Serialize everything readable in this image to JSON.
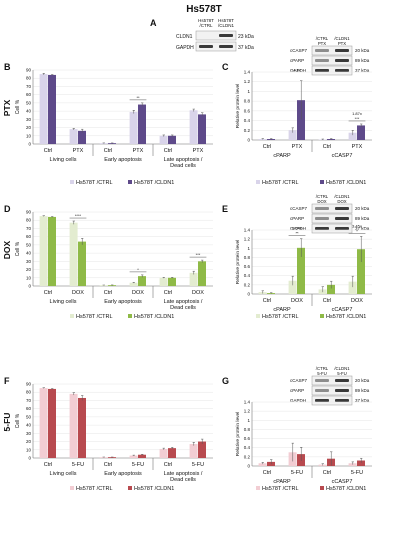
{
  "figure": {
    "title": "Hs578T",
    "blot_top": {
      "panel_label": "A",
      "lanes": [
        "Hs578T\n/CTRL",
        "Hs578T\n/CLDN1"
      ],
      "rows": [
        "CLDN1",
        "GAPDH"
      ],
      "sizes": [
        "23 kDa",
        "37 kDa"
      ]
    }
  },
  "colors": {
    "ctrl_ptx": "#d9d4ea",
    "cldn1_ptx": "#5e4a8a",
    "ctrl_dox": "#e3ecd0",
    "cldn1_dox": "#8fba47",
    "ctrl_5fu": "#f2cdd3",
    "cldn1_5fu": "#b84a4f"
  },
  "rows": [
    {
      "row_label": "PTX",
      "left_panel": "B",
      "right_panel": "C",
      "legend": [
        "Hs578T /CTRL",
        "Hs578T /CLDN1"
      ],
      "right_blot": {
        "lanes": [
          "/CTRL\nPTX",
          "/CLDN1\nPTX"
        ],
        "rows": [
          "cCASP7",
          "cPARP",
          "GAPDH"
        ],
        "sizes": [
          "20 kDa",
          "89 kDa",
          "37 kDa"
        ]
      },
      "right_annotations": [
        "4.1x",
        "1.87x"
      ]
    },
    {
      "row_label": "DOX",
      "left_panel": "D",
      "right_panel": "E",
      "legend": [
        "Hs578T /CTRL",
        "Hs578T /CLDN1"
      ],
      "right_blot": {
        "lanes": [
          "/CTRL\nDOX",
          "/CLDN1\nDOX"
        ],
        "rows": [
          "cCASP7",
          "cPARP",
          "GAPDH"
        ],
        "sizes": [
          "20 kDa",
          "89 kDa",
          "37 kDa"
        ]
      },
      "right_annotations": [
        "3.54x",
        "3.45x"
      ]
    },
    {
      "row_label": "5-FU",
      "left_panel": "F",
      "right_panel": "G",
      "legend": [
        "Hs578T /CTRL",
        "Hs578T /CLDN1"
      ],
      "right_blot": {
        "lanes": [
          "/CTRL\n5-FU",
          "/CLDN1\n5-FU"
        ],
        "rows": [
          "cCASP7",
          "cPARP",
          "GAPDH"
        ],
        "sizes": [
          "20 kDa",
          "89 kDa",
          "37 kDa"
        ]
      },
      "right_annotations": []
    }
  ],
  "chart_data": [
    {
      "id": "B",
      "type": "bar",
      "ylabel": "Cell %",
      "ylim": [
        0,
        90
      ],
      "yticks": [
        0,
        10,
        20,
        30,
        40,
        50,
        60,
        70,
        80,
        90
      ],
      "categories": [
        "Ctrl",
        "PTX",
        "Ctrl",
        "PTX",
        "Ctrl",
        "PTX"
      ],
      "groups": [
        "Living cells",
        "Early apoptosis",
        "Late apoptosis  /\nDead cells"
      ],
      "series": [
        {
          "name": "Hs578T /CTRL",
          "values": [
            85,
            18,
            1,
            39,
            10,
            41
          ],
          "errors": [
            1,
            1,
            0.3,
            2,
            1,
            1.5
          ]
        },
        {
          "name": "Hs578T /CLDN1",
          "values": [
            84,
            16,
            1,
            48,
            10,
            36
          ],
          "errors": [
            0.5,
            2,
            0.3,
            2,
            1,
            2
          ]
        }
      ],
      "significance": [
        "",
        "",
        "",
        "**",
        "",
        ""
      ]
    },
    {
      "id": "C",
      "type": "bar",
      "ylabel": "Relative protein level",
      "ylim": [
        0,
        1.4
      ],
      "yticks": [
        0,
        0.2,
        0.4,
        0.6,
        0.8,
        1,
        1.2,
        1.4
      ],
      "categories": [
        "Ctrl",
        "PTX",
        "Ctrl",
        "PTX"
      ],
      "groups": [
        "cPARP",
        "cCASP7"
      ],
      "series": [
        {
          "name": "Hs578T /CTRL",
          "values": [
            0.02,
            0.2,
            0.01,
            0.15
          ],
          "errors": [
            0.01,
            0.05,
            0.01,
            0.05
          ]
        },
        {
          "name": "Hs578T /CLDN1",
          "values": [
            0.02,
            0.82,
            0.02,
            0.3
          ],
          "errors": [
            0.01,
            0.4,
            0.01,
            0.03
          ]
        }
      ],
      "significance": [
        "",
        "",
        "",
        "***"
      ]
    },
    {
      "id": "D",
      "type": "bar",
      "ylabel": "Cell %",
      "ylim": [
        0,
        90
      ],
      "yticks": [
        0,
        10,
        20,
        30,
        40,
        50,
        60,
        70,
        80,
        90
      ],
      "categories": [
        "Ctrl",
        "DOX",
        "Ctrl",
        "DOX",
        "Ctrl",
        "DOX"
      ],
      "groups": [
        "Living cells",
        "Early apoptosis",
        "Late apoptosis  /\nDead cells"
      ],
      "series": [
        {
          "name": "Hs578T /CTRL",
          "values": [
            85,
            77,
            1,
            4,
            10,
            16
          ],
          "errors": [
            0.5,
            2,
            0.2,
            0.5,
            0.5,
            2
          ]
        },
        {
          "name": "Hs578T /CLDN1",
          "values": [
            84,
            54,
            1,
            12,
            10,
            30
          ],
          "errors": [
            0.5,
            4,
            0.3,
            1.5,
            0.5,
            1.5
          ]
        }
      ],
      "significance": [
        "",
        "****",
        "",
        "*",
        "",
        "***"
      ]
    },
    {
      "id": "E",
      "type": "bar",
      "ylabel": "Relative protein level",
      "ylim": [
        0,
        1.4
      ],
      "yticks": [
        0,
        0.2,
        0.4,
        0.6,
        0.8,
        1,
        1.2,
        1.4
      ],
      "categories": [
        "Ctrl",
        "DOX",
        "Ctrl",
        "DOX"
      ],
      "groups": [
        "cPARP",
        "cCASP7"
      ],
      "series": [
        {
          "name": "Hs578T /CTRL",
          "values": [
            0.04,
            0.29,
            0.1,
            0.27
          ],
          "errors": [
            0.03,
            0.1,
            0.06,
            0.12
          ]
        },
        {
          "name": "Hs578T /CLDN1",
          "values": [
            0.02,
            1.01,
            0.2,
            0.98
          ],
          "errors": [
            0.01,
            0.2,
            0.08,
            0.28
          ]
        }
      ],
      "significance": [
        "",
        "**",
        "",
        "*"
      ]
    },
    {
      "id": "F",
      "type": "bar",
      "ylabel": "Cell %",
      "ylim": [
        0,
        90
      ],
      "yticks": [
        0,
        10,
        20,
        30,
        40,
        50,
        60,
        70,
        80,
        90
      ],
      "categories": [
        "Ctrl",
        "5-FU",
        "Ctrl",
        "5-FU",
        "Ctrl",
        "5-FU"
      ],
      "groups": [
        "Living cells",
        "Early apoptosis",
        "Late apoptosis  /\nDead cells"
      ],
      "series": [
        {
          "name": "Hs578T /CTRL",
          "values": [
            85,
            78,
            1,
            3,
            11,
            17
          ],
          "errors": [
            0.5,
            1.5,
            0.2,
            0.5,
            1,
            2
          ]
        },
        {
          "name": "Hs578T /CLDN1",
          "values": [
            84,
            73,
            1,
            4,
            12,
            20
          ],
          "errors": [
            0.5,
            3,
            0.2,
            0.5,
            1,
            3
          ]
        }
      ],
      "significance": [
        "",
        "",
        "",
        "",
        "",
        ""
      ]
    },
    {
      "id": "G",
      "type": "bar",
      "ylabel": "Relative protein level",
      "ylim": [
        0,
        1.4
      ],
      "yticks": [
        0,
        0.2,
        0.4,
        0.6,
        0.8,
        1,
        1.2,
        1.4
      ],
      "categories": [
        "Ctrl",
        "5-FU",
        "Ctrl",
        "5-FU"
      ],
      "groups": [
        "cPARP",
        "cCASP7"
      ],
      "series": [
        {
          "name": "Hs578T /CTRL",
          "values": [
            0.06,
            0.3,
            0.03,
            0.06
          ],
          "errors": [
            0.02,
            0.2,
            0.02,
            0.03
          ]
        },
        {
          "name": "Hs578T /CLDN1",
          "values": [
            0.09,
            0.26,
            0.16,
            0.12
          ],
          "errors": [
            0.05,
            0.15,
            0.15,
            0.05
          ]
        }
      ],
      "significance": [
        "",
        "",
        "",
        ""
      ]
    }
  ]
}
